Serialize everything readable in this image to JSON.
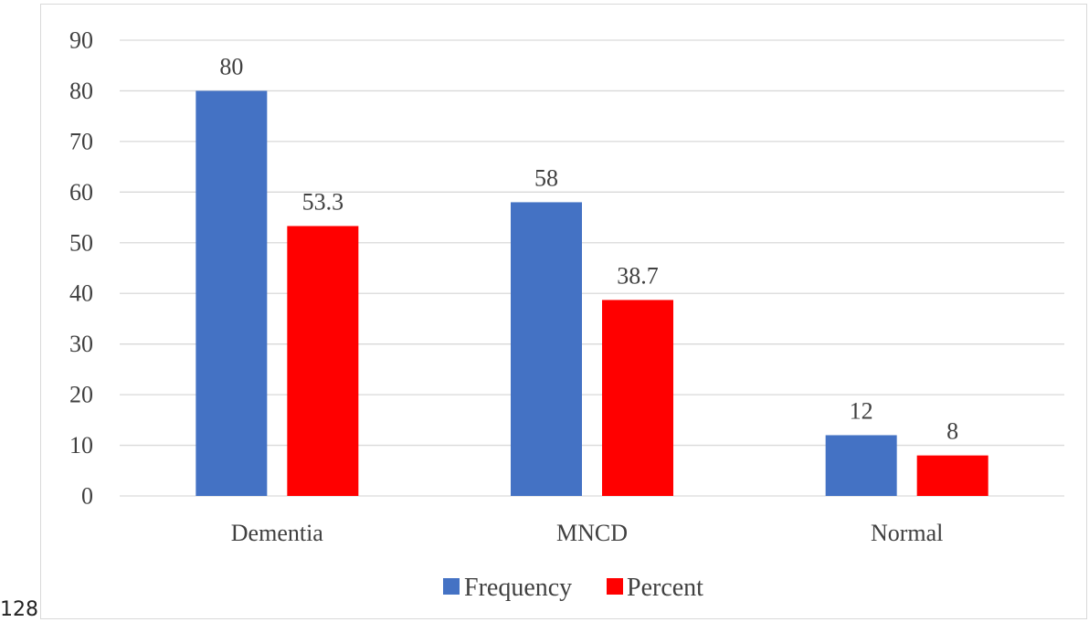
{
  "page_number": "128",
  "colors": {
    "frequency": "#4472C4",
    "percent": "#FF0000",
    "gridline": "#d9d9d9",
    "text": "#404040"
  },
  "chart_data": {
    "type": "bar",
    "categories": [
      "Dementia",
      "MNCD",
      "Normal"
    ],
    "series": [
      {
        "name": "Frequency",
        "values": [
          80,
          58,
          12
        ],
        "labels": [
          "80",
          "58",
          "12"
        ]
      },
      {
        "name": "Percent",
        "values": [
          53.3,
          38.7,
          8
        ],
        "labels": [
          "53.3",
          "38.7",
          "8"
        ]
      }
    ],
    "ylim": [
      0,
      90
    ],
    "yticks": [
      0,
      10,
      20,
      30,
      40,
      50,
      60,
      70,
      80,
      90
    ],
    "title": "",
    "xlabel": "",
    "ylabel": "",
    "grid": true,
    "legend": "bottom"
  }
}
